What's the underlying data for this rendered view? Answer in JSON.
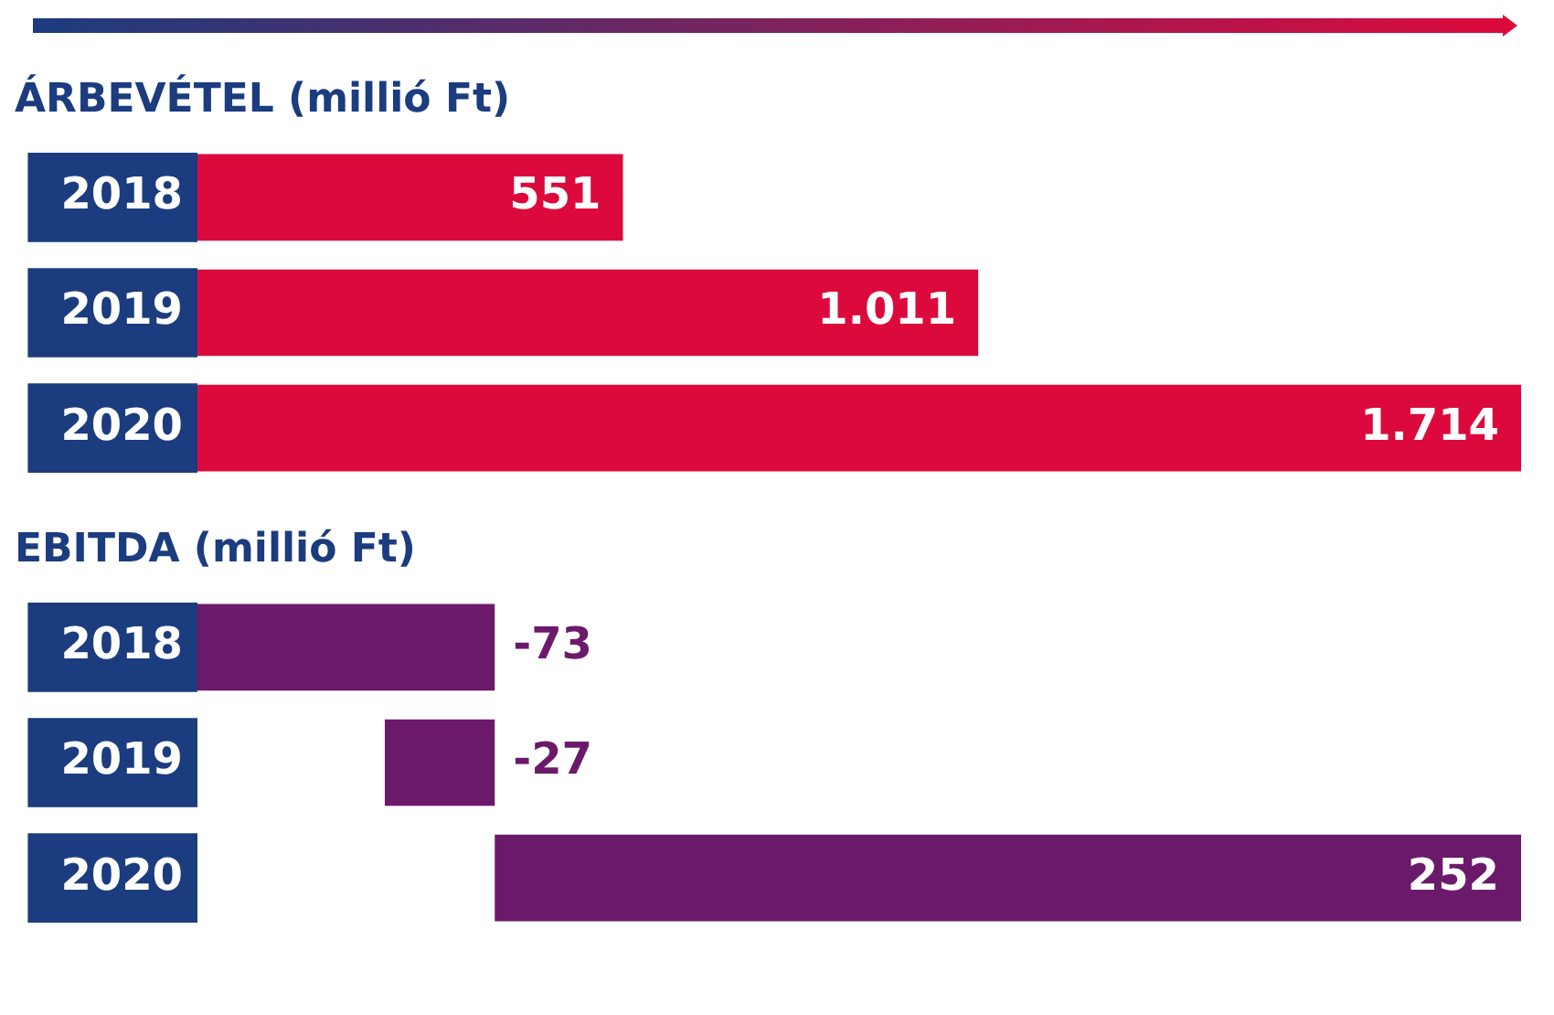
{
  "chart_data": [
    {
      "type": "bar",
      "orientation": "horizontal",
      "title": "ÁRBEVÉTEL (millió Ft)",
      "categories": [
        "2018",
        "2019",
        "2020"
      ],
      "values": [
        551,
        1011,
        1714
      ],
      "value_labels": [
        "551",
        "1.011",
        "1.714"
      ],
      "color": "#dc0a3c",
      "xlim": [
        0,
        1714
      ],
      "grid": false,
      "tick_labels": "y"
    },
    {
      "type": "bar",
      "orientation": "horizontal",
      "title": "EBITDA (millió Ft)",
      "categories": [
        "2018",
        "2019",
        "2020"
      ],
      "values": [
        -73,
        -27,
        252
      ],
      "data_labels": true,
      "color": "#6b1a6b",
      "xlim": [
        -73,
        252
      ],
      "grid": false,
      "tick_labels": "y"
    }
  ]
}
